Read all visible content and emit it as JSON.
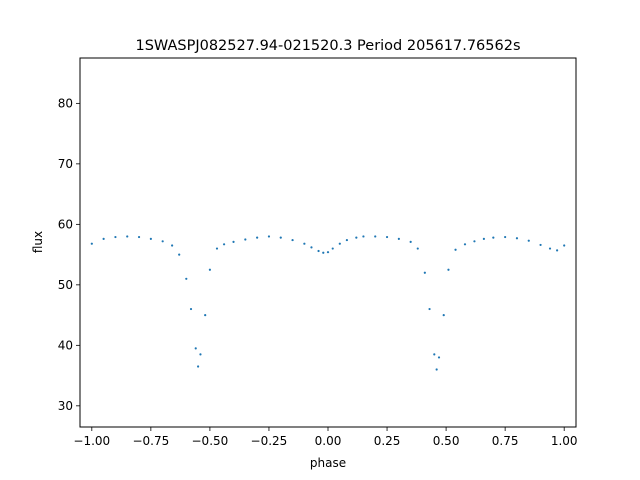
{
  "chart_data": {
    "type": "scatter",
    "title": "1SWASPJ082527.94-021520.3 Period 205617.76562s",
    "xlabel": "phase",
    "ylabel": "flux",
    "xlim": [
      -1.05,
      1.05
    ],
    "ylim": [
      26.5,
      87.5
    ],
    "xticks": [
      -1.0,
      -0.75,
      -0.5,
      -0.25,
      0.0,
      0.25,
      0.5,
      0.75,
      1.0
    ],
    "xtick_labels": [
      "−1.00",
      "−0.75",
      "−0.50",
      "−0.25",
      "0.00",
      "0.25",
      "0.50",
      "0.75",
      "1.00"
    ],
    "yticks": [
      30,
      40,
      50,
      60,
      70,
      80
    ],
    "ytick_labels": [
      "30",
      "40",
      "50",
      "60",
      "70",
      "80"
    ],
    "grid": false,
    "point_color": "#1f77b4",
    "series": [
      {
        "x": [
          -1.0,
          -0.95,
          -0.9,
          -0.85,
          -0.8,
          -0.75,
          -0.7,
          -0.66,
          -0.63,
          -0.6,
          -0.58,
          -0.56,
          -0.55,
          -0.54,
          -0.52,
          -0.5,
          -0.47,
          -0.44,
          -0.4,
          -0.35,
          -0.3,
          -0.25,
          -0.2,
          -0.15,
          -0.1,
          -0.07,
          -0.04,
          -0.02,
          0.0,
          0.02,
          0.05,
          0.08,
          0.12,
          0.15,
          0.2,
          0.25,
          0.3,
          0.35,
          0.38,
          0.41,
          0.43,
          0.45,
          0.46,
          0.47,
          0.49,
          0.51,
          0.54,
          0.58,
          0.62,
          0.66,
          0.7,
          0.75,
          0.8,
          0.85,
          0.9,
          0.94,
          0.97,
          1.0
        ],
        "y": [
          56.8,
          57.6,
          57.9,
          58.0,
          57.9,
          57.6,
          57.2,
          56.5,
          55.0,
          51.0,
          46.0,
          39.5,
          36.5,
          38.5,
          45.0,
          52.5,
          56.0,
          56.7,
          57.1,
          57.5,
          57.8,
          58.0,
          57.8,
          57.4,
          56.8,
          56.2,
          55.6,
          55.3,
          55.4,
          56.0,
          56.8,
          57.4,
          57.8,
          58.0,
          58.0,
          57.9,
          57.6,
          57.1,
          56.0,
          52.0,
          46.0,
          38.5,
          36.0,
          38.0,
          45.0,
          52.5,
          55.8,
          56.7,
          57.2,
          57.6,
          57.8,
          57.9,
          57.7,
          57.3,
          56.6,
          56.0,
          55.7,
          56.5
        ]
      }
    ]
  }
}
